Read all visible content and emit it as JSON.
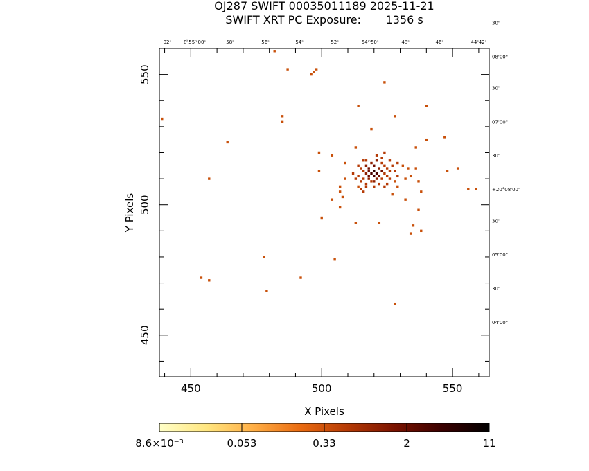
{
  "header": {
    "title_line1": "OJ287 SWIFT 00035011189 2025-11-21",
    "title_line2": "SWIFT XRT PC Exposure:       1356 s"
  },
  "chart_data": {
    "type": "scatter",
    "xlabel": "X Pixels",
    "ylabel": "Y Pixels",
    "xlim": [
      438,
      564
    ],
    "ylim": [
      434,
      560
    ],
    "x_ticks": [
      450,
      500,
      550
    ],
    "y_ticks": [
      450,
      500,
      550
    ],
    "top_ra_labels": [
      "02ˢ",
      "8ʰ55ᵐ00ˢ",
      "58ˢ",
      "56ˢ",
      "54ˢ",
      "52ˢ",
      "54ᵐ50ˢ",
      "48ˢ",
      "46ˢ",
      "44ˢ",
      "42ˢ"
    ],
    "top_ra_x": [
      441,
      451.5,
      465,
      478.5,
      491.5,
      505,
      518.5,
      532,
      545,
      558.5,
      561.5
    ],
    "right_dec_labels": [
      "30\"",
      "08'00\"",
      "30\"",
      "07'00\"",
      "30\"",
      "+20°08'00\"",
      "30\"",
      "05'00\"",
      "30\"",
      "04'00\""
    ],
    "right_dec_y": [
      570,
      557,
      545,
      532,
      519,
      506,
      494,
      481,
      468,
      455
    ],
    "colorbar": {
      "tick_labels": [
        "8.6×10⁻³",
        "0.053",
        "0.33",
        "2",
        "11"
      ],
      "colors": [
        "#ffffc8",
        "#ffe680",
        "#ffae45",
        "#e96a10",
        "#b53a05",
        "#7a1200",
        "#3a0000",
        "#000000"
      ]
    },
    "points": [
      {
        "x": 482,
        "y": 559,
        "v": 0.6
      },
      {
        "x": 487,
        "y": 552,
        "v": 0.6
      },
      {
        "x": 496,
        "y": 550,
        "v": 0.6
      },
      {
        "x": 497,
        "y": 551,
        "v": 0.6
      },
      {
        "x": 498,
        "y": 552,
        "v": 0.6
      },
      {
        "x": 524,
        "y": 547,
        "v": 0.6
      },
      {
        "x": 514,
        "y": 538,
        "v": 0.6
      },
      {
        "x": 540,
        "y": 538,
        "v": 0.6
      },
      {
        "x": 528,
        "y": 534,
        "v": 0.6
      },
      {
        "x": 485,
        "y": 534,
        "v": 0.6
      },
      {
        "x": 485,
        "y": 532,
        "v": 0.6
      },
      {
        "x": 439,
        "y": 533,
        "v": 0.6
      },
      {
        "x": 519,
        "y": 529,
        "v": 0.4
      },
      {
        "x": 547,
        "y": 526,
        "v": 0.6
      },
      {
        "x": 540,
        "y": 525,
        "v": 0.6
      },
      {
        "x": 464,
        "y": 524,
        "v": 0.6
      },
      {
        "x": 513,
        "y": 522,
        "v": 0.6
      },
      {
        "x": 536,
        "y": 522,
        "v": 0.6
      },
      {
        "x": 499,
        "y": 520,
        "v": 0.6
      },
      {
        "x": 504,
        "y": 519,
        "v": 0.6
      },
      {
        "x": 521,
        "y": 519,
        "v": 1.5
      },
      {
        "x": 523,
        "y": 518,
        "v": 1.5
      },
      {
        "x": 524,
        "y": 520,
        "v": 1.5
      },
      {
        "x": 509,
        "y": 516,
        "v": 0.6
      },
      {
        "x": 516,
        "y": 517,
        "v": 1.5
      },
      {
        "x": 517,
        "y": 517,
        "v": 1.5
      },
      {
        "x": 519,
        "y": 516,
        "v": 3
      },
      {
        "x": 521,
        "y": 517,
        "v": 3
      },
      {
        "x": 523,
        "y": 516,
        "v": 1.5
      },
      {
        "x": 526,
        "y": 517,
        "v": 1.5
      },
      {
        "x": 529,
        "y": 516,
        "v": 1.5
      },
      {
        "x": 531,
        "y": 515,
        "v": 0.6
      },
      {
        "x": 552,
        "y": 514,
        "v": 0.6
      },
      {
        "x": 499,
        "y": 513,
        "v": 0.6
      },
      {
        "x": 514,
        "y": 515,
        "v": 1.5
      },
      {
        "x": 515,
        "y": 514,
        "v": 1.5
      },
      {
        "x": 517,
        "y": 515,
        "v": 3
      },
      {
        "x": 518,
        "y": 514,
        "v": 4
      },
      {
        "x": 520,
        "y": 515,
        "v": 5
      },
      {
        "x": 522,
        "y": 514,
        "v": 3
      },
      {
        "x": 524,
        "y": 515,
        "v": 1.5
      },
      {
        "x": 525,
        "y": 514,
        "v": 1.5
      },
      {
        "x": 527,
        "y": 515,
        "v": 1.5
      },
      {
        "x": 533,
        "y": 514,
        "v": 0.6
      },
      {
        "x": 536,
        "y": 514,
        "v": 0.6
      },
      {
        "x": 516,
        "y": 513,
        "v": 1.5
      },
      {
        "x": 518,
        "y": 513,
        "v": 5
      },
      {
        "x": 519,
        "y": 512,
        "v": 8
      },
      {
        "x": 520,
        "y": 513,
        "v": 11
      },
      {
        "x": 521,
        "y": 512,
        "v": 8
      },
      {
        "x": 523,
        "y": 513,
        "v": 4
      },
      {
        "x": 526,
        "y": 513,
        "v": 1.5
      },
      {
        "x": 528,
        "y": 513,
        "v": 1.5
      },
      {
        "x": 548,
        "y": 513,
        "v": 0.6
      },
      {
        "x": 512,
        "y": 512,
        "v": 1.5
      },
      {
        "x": 514,
        "y": 511,
        "v": 1.5
      },
      {
        "x": 517,
        "y": 512,
        "v": 3
      },
      {
        "x": 518,
        "y": 511,
        "v": 5
      },
      {
        "x": 520,
        "y": 511,
        "v": 8
      },
      {
        "x": 522,
        "y": 511,
        "v": 4
      },
      {
        "x": 524,
        "y": 512,
        "v": 1.5
      },
      {
        "x": 525,
        "y": 511,
        "v": 1.5
      },
      {
        "x": 529,
        "y": 511,
        "v": 1.5
      },
      {
        "x": 534,
        "y": 511,
        "v": 0.6
      },
      {
        "x": 457,
        "y": 510,
        "v": 0.6
      },
      {
        "x": 509,
        "y": 510,
        "v": 0.6
      },
      {
        "x": 513,
        "y": 510,
        "v": 1.5
      },
      {
        "x": 516,
        "y": 510,
        "v": 1.5
      },
      {
        "x": 518,
        "y": 510,
        "v": 3
      },
      {
        "x": 520,
        "y": 509,
        "v": 3
      },
      {
        "x": 521,
        "y": 510,
        "v": 3
      },
      {
        "x": 523,
        "y": 510,
        "v": 1.5
      },
      {
        "x": 526,
        "y": 510,
        "v": 1.5
      },
      {
        "x": 532,
        "y": 510,
        "v": 0.6
      },
      {
        "x": 515,
        "y": 509,
        "v": 1.5
      },
      {
        "x": 517,
        "y": 508,
        "v": 1.5
      },
      {
        "x": 519,
        "y": 509,
        "v": 1.5
      },
      {
        "x": 522,
        "y": 508,
        "v": 1.5
      },
      {
        "x": 525,
        "y": 508,
        "v": 1.5
      },
      {
        "x": 528,
        "y": 509,
        "v": 0.6
      },
      {
        "x": 537,
        "y": 509,
        "v": 0.6
      },
      {
        "x": 507,
        "y": 507,
        "v": 0.6
      },
      {
        "x": 514,
        "y": 507,
        "v": 0.6
      },
      {
        "x": 517,
        "y": 507,
        "v": 1.5
      },
      {
        "x": 520,
        "y": 507,
        "v": 1.5
      },
      {
        "x": 524,
        "y": 507,
        "v": 1.5
      },
      {
        "x": 529,
        "y": 507,
        "v": 0.6
      },
      {
        "x": 515,
        "y": 506,
        "v": 1.5
      },
      {
        "x": 516,
        "y": 505,
        "v": 1.5
      },
      {
        "x": 538,
        "y": 505,
        "v": 0.6
      },
      {
        "x": 556,
        "y": 506,
        "v": 0.6
      },
      {
        "x": 559,
        "y": 506,
        "v": 0.6
      },
      {
        "x": 507,
        "y": 505,
        "v": 0.6
      },
      {
        "x": 527,
        "y": 504,
        "v": 0.6
      },
      {
        "x": 504,
        "y": 502,
        "v": 0.6
      },
      {
        "x": 508,
        "y": 503,
        "v": 0.6
      },
      {
        "x": 532,
        "y": 502,
        "v": 0.6
      },
      {
        "x": 507,
        "y": 499,
        "v": 0.6
      },
      {
        "x": 537,
        "y": 498,
        "v": 0.6
      },
      {
        "x": 500,
        "y": 495,
        "v": 0.6
      },
      {
        "x": 513,
        "y": 493,
        "v": 0.6
      },
      {
        "x": 522,
        "y": 493,
        "v": 0.6
      },
      {
        "x": 535,
        "y": 492,
        "v": 0.6
      },
      {
        "x": 538,
        "y": 490,
        "v": 0.6
      },
      {
        "x": 534,
        "y": 489,
        "v": 0.6
      },
      {
        "x": 478,
        "y": 480,
        "v": 0.6
      },
      {
        "x": 505,
        "y": 479,
        "v": 0.6
      },
      {
        "x": 454,
        "y": 472,
        "v": 0.6
      },
      {
        "x": 457,
        "y": 471,
        "v": 0.6
      },
      {
        "x": 492,
        "y": 472,
        "v": 0.6
      },
      {
        "x": 479,
        "y": 467,
        "v": 0.6
      },
      {
        "x": 528,
        "y": 462,
        "v": 0.6
      }
    ]
  }
}
